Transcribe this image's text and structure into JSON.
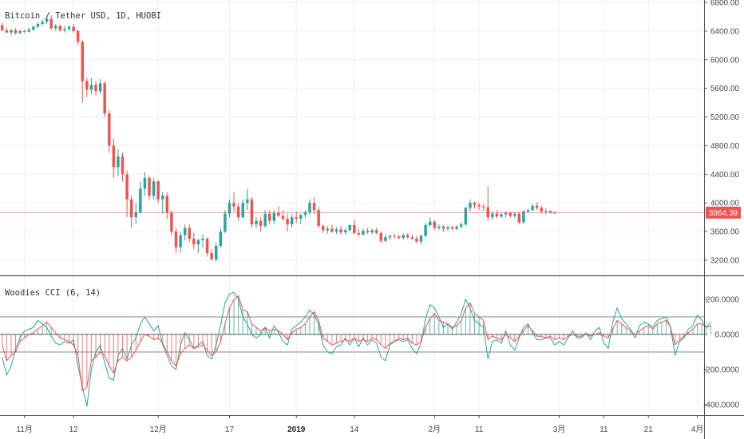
{
  "chart_data": [
    {
      "type": "candlestick",
      "title": "Bitcoin / Tether USD, 1D, HUOBI",
      "last_price": 3864.39,
      "ylim": [
        3000,
        6900
      ],
      "y_ticks": [
        "3200.00",
        "3600.00",
        "4000.00",
        "4400.00",
        "4800.00",
        "5200.00",
        "5600.00",
        "6000.00",
        "6400.00",
        "6800.00"
      ],
      "grid": true,
      "colors": {
        "up": "#26a69a",
        "down": "#ef5350",
        "last_price_line": "#ef5350"
      },
      "ohlc": [
        [
          6480,
          6520,
          6400,
          6410
        ],
        [
          6410,
          6450,
          6370,
          6380
        ],
        [
          6380,
          6430,
          6340,
          6410
        ],
        [
          6410,
          6440,
          6350,
          6370
        ],
        [
          6370,
          6420,
          6360,
          6400
        ],
        [
          6400,
          6420,
          6370,
          6390
        ],
        [
          6390,
          6450,
          6380,
          6420
        ],
        [
          6420,
          6480,
          6400,
          6460
        ],
        [
          6460,
          6520,
          6440,
          6500
        ],
        [
          6500,
          6560,
          6470,
          6530
        ],
        [
          6530,
          6600,
          6500,
          6570
        ],
        [
          6570,
          6620,
          6420,
          6440
        ],
        [
          6440,
          6500,
          6400,
          6470
        ],
        [
          6470,
          6490,
          6390,
          6410
        ],
        [
          6410,
          6470,
          6380,
          6430
        ],
        [
          6430,
          6480,
          6400,
          6460
        ],
        [
          6460,
          6500,
          6380,
          6400
        ],
        [
          6400,
          6420,
          6200,
          6250
        ],
        [
          6250,
          6270,
          5400,
          5700
        ],
        [
          5700,
          5750,
          5480,
          5580
        ],
        [
          5580,
          5740,
          5520,
          5650
        ],
        [
          5650,
          5700,
          5500,
          5560
        ],
        [
          5560,
          5730,
          5520,
          5670
        ],
        [
          5670,
          5700,
          5200,
          5250
        ],
        [
          5250,
          5300,
          4700,
          4800
        ],
        [
          4800,
          4900,
          4350,
          4500
        ],
        [
          4500,
          4750,
          4380,
          4650
        ],
        [
          4650,
          4700,
          4300,
          4400
        ],
        [
          4400,
          4450,
          3800,
          4050
        ],
        [
          4050,
          4100,
          3650,
          3800
        ],
        [
          3800,
          4000,
          3700,
          3870
        ],
        [
          3870,
          4300,
          3850,
          4200
        ],
        [
          4200,
          4430,
          4100,
          4350
        ],
        [
          4350,
          4380,
          4050,
          4100
        ],
        [
          4100,
          4350,
          4050,
          4300
        ],
        [
          4300,
          4320,
          4000,
          4050
        ],
        [
          4050,
          4150,
          3850,
          4100
        ],
        [
          4100,
          4150,
          3780,
          3860
        ],
        [
          3860,
          3900,
          3550,
          3600
        ],
        [
          3600,
          3650,
          3300,
          3380
        ],
        [
          3380,
          3600,
          3300,
          3550
        ],
        [
          3550,
          3700,
          3480,
          3650
        ],
        [
          3650,
          3700,
          3450,
          3500
        ],
        [
          3500,
          3580,
          3350,
          3420
        ],
        [
          3420,
          3500,
          3300,
          3480
        ],
        [
          3480,
          3560,
          3380,
          3500
        ],
        [
          3500,
          3520,
          3250,
          3300
        ],
        [
          3300,
          3350,
          3200,
          3210
        ],
        [
          3210,
          3450,
          3180,
          3400
        ],
        [
          3400,
          3650,
          3380,
          3600
        ],
        [
          3600,
          3900,
          3580,
          3850
        ],
        [
          3850,
          4050,
          3800,
          4000
        ],
        [
          4000,
          4150,
          3880,
          3950
        ],
        [
          3950,
          4000,
          3750,
          3800
        ],
        [
          3800,
          4050,
          3780,
          4000
        ],
        [
          4000,
          4200,
          3900,
          4050
        ],
        [
          4050,
          4080,
          3650,
          3700
        ],
        [
          3700,
          3800,
          3650,
          3750
        ],
        [
          3750,
          3800,
          3600,
          3680
        ],
        [
          3680,
          3900,
          3650,
          3850
        ],
        [
          3850,
          3900,
          3700,
          3750
        ],
        [
          3750,
          3900,
          3700,
          3860
        ],
        [
          3860,
          3950,
          3800,
          3820
        ],
        [
          3820,
          3900,
          3750,
          3780
        ],
        [
          3780,
          3850,
          3600,
          3700
        ],
        [
          3700,
          3850,
          3650,
          3800
        ],
        [
          3800,
          3880,
          3720,
          3780
        ],
        [
          3780,
          3850,
          3700,
          3830
        ],
        [
          3830,
          3900,
          3790,
          3870
        ],
        [
          3870,
          4050,
          3830,
          4000
        ],
        [
          4000,
          4080,
          3850,
          3900
        ],
        [
          3900,
          3950,
          3650,
          3680
        ],
        [
          3680,
          3700,
          3580,
          3620
        ],
        [
          3620,
          3680,
          3570,
          3640
        ],
        [
          3640,
          3700,
          3580,
          3600
        ],
        [
          3600,
          3660,
          3570,
          3630
        ],
        [
          3630,
          3680,
          3550,
          3590
        ],
        [
          3590,
          3650,
          3560,
          3620
        ],
        [
          3620,
          3700,
          3600,
          3690
        ],
        [
          3690,
          3760,
          3560,
          3580
        ],
        [
          3580,
          3640,
          3530,
          3560
        ],
        [
          3560,
          3640,
          3540,
          3610
        ],
        [
          3610,
          3650,
          3570,
          3590
        ],
        [
          3590,
          3640,
          3560,
          3620
        ],
        [
          3620,
          3650,
          3560,
          3580
        ],
        [
          3580,
          3600,
          3440,
          3470
        ],
        [
          3470,
          3560,
          3450,
          3520
        ],
        [
          3520,
          3560,
          3480,
          3540
        ],
        [
          3540,
          3570,
          3500,
          3530
        ],
        [
          3530,
          3560,
          3490,
          3510
        ],
        [
          3510,
          3570,
          3490,
          3550
        ],
        [
          3550,
          3580,
          3500,
          3520
        ],
        [
          3520,
          3560,
          3480,
          3500
        ],
        [
          3500,
          3540,
          3440,
          3460
        ],
        [
          3460,
          3560,
          3420,
          3540
        ],
        [
          3540,
          3720,
          3520,
          3690
        ],
        [
          3690,
          3800,
          3670,
          3740
        ],
        [
          3740,
          3760,
          3620,
          3650
        ],
        [
          3650,
          3700,
          3620,
          3670
        ],
        [
          3670,
          3690,
          3600,
          3640
        ],
        [
          3640,
          3680,
          3610,
          3660
        ],
        [
          3660,
          3680,
          3620,
          3640
        ],
        [
          3640,
          3690,
          3620,
          3670
        ],
        [
          3670,
          3730,
          3640,
          3700
        ],
        [
          3700,
          3950,
          3680,
          3930
        ],
        [
          3930,
          4050,
          3880,
          4000
        ],
        [
          4000,
          4020,
          3920,
          3970
        ],
        [
          3970,
          4000,
          3900,
          3950
        ],
        [
          3950,
          3980,
          3890,
          3940
        ],
        [
          3940,
          4230,
          3750,
          3800
        ],
        [
          3800,
          3880,
          3760,
          3850
        ],
        [
          3850,
          3900,
          3780,
          3810
        ],
        [
          3810,
          3860,
          3790,
          3840
        ],
        [
          3840,
          3890,
          3800,
          3860
        ],
        [
          3860,
          3880,
          3790,
          3820
        ],
        [
          3820,
          3870,
          3790,
          3850
        ],
        [
          3850,
          3870,
          3700,
          3730
        ],
        [
          3730,
          3900,
          3710,
          3880
        ],
        [
          3880,
          3920,
          3850,
          3900
        ],
        [
          3900,
          3990,
          3880,
          3960
        ],
        [
          3960,
          4010,
          3900,
          3930
        ],
        [
          3930,
          3960,
          3850,
          3880
        ],
        [
          3880,
          3920,
          3840,
          3890
        ],
        [
          3890,
          3900,
          3850,
          3870
        ],
        [
          3870,
          3880,
          3840,
          3864
        ]
      ],
      "x_ticks": [
        {
          "index": 5,
          "label": "11月",
          "bold": false
        },
        {
          "index": 16,
          "label": "12",
          "bold": false
        },
        {
          "index": 35,
          "label": "12月",
          "bold": false
        },
        {
          "index": 51,
          "label": "17",
          "bold": false
        },
        {
          "index": 66,
          "label": "2019",
          "bold": true
        },
        {
          "index": 79,
          "label": "14",
          "bold": false
        },
        {
          "index": 97,
          "label": "2月",
          "bold": false
        },
        {
          "index": 107,
          "label": "11",
          "bold": false
        },
        {
          "index": 125,
          "label": "3月",
          "bold": false
        },
        {
          "index": 135,
          "label": "11",
          "bold": false
        },
        {
          "index": 145,
          "label": "21",
          "bold": false
        },
        {
          "index": 156,
          "label": "4月",
          "bold": false
        }
      ],
      "x_slots": 158
    },
    {
      "type": "line",
      "title": "Woodies CCI (6, 14)",
      "ylim": [
        -440,
        300
      ],
      "y_ticks": [
        "200.0000",
        "0.0000",
        "-200.0000",
        "-400.0000"
      ],
      "reference_lines": [
        100,
        0,
        -100
      ],
      "series": [
        {
          "color": "#ef5350",
          "role": "cci-14"
        },
        {
          "color": "#26a69a",
          "role": "turbo-cci-6"
        }
      ],
      "cci14": [
        -60,
        -150,
        -120,
        -100,
        -40,
        -20,
        0,
        10,
        30,
        50,
        70,
        40,
        10,
        -20,
        -30,
        -40,
        -60,
        -120,
        -320,
        -300,
        -150,
        -130,
        -100,
        -120,
        -180,
        -220,
        -150,
        -130,
        -150,
        -130,
        -90,
        -40,
        0,
        -10,
        -30,
        -20,
        -50,
        -100,
        -150,
        -180,
        -110,
        -80,
        -60,
        -80,
        -70,
        -60,
        -90,
        -120,
        -100,
        -40,
        60,
        150,
        200,
        220,
        140,
        130,
        60,
        40,
        20,
        40,
        20,
        30,
        20,
        0,
        -30,
        10,
        30,
        40,
        60,
        100,
        130,
        80,
        -20,
        -40,
        -60,
        -50,
        -40,
        -30,
        -40,
        -20,
        -40,
        -30,
        -40,
        -20,
        -30,
        -60,
        -80,
        -50,
        -40,
        -20,
        -30,
        -20,
        -50,
        -60,
        -40,
        40,
        90,
        120,
        80,
        70,
        60,
        40,
        50,
        80,
        150,
        180,
        120,
        100,
        80,
        -30,
        -10,
        -20,
        -30,
        0,
        -20,
        -40,
        -10,
        20,
        50,
        20,
        -10,
        -10,
        -20,
        -10,
        -30,
        -20,
        -30,
        -10,
        0,
        -10,
        -10,
        0,
        -10,
        0,
        10,
        -10,
        -20,
        30,
        80,
        60,
        40,
        20,
        0,
        20,
        40,
        50,
        30,
        60,
        70,
        80,
        40,
        -60,
        -30,
        -10,
        10,
        30,
        60,
        60,
        40,
        50
      ],
      "cci6": [
        -130,
        -230,
        -180,
        -80,
        -20,
        20,
        30,
        40,
        80,
        60,
        40,
        -10,
        -50,
        -60,
        -40,
        -50,
        -30,
        -180,
        -300,
        -410,
        -200,
        -100,
        -60,
        -160,
        -250,
        -260,
        -120,
        -80,
        -140,
        -60,
        -20,
        60,
        100,
        60,
        20,
        50,
        -60,
        -120,
        -180,
        -200,
        -60,
        10,
        -30,
        -80,
        -60,
        -40,
        -120,
        -140,
        -60,
        50,
        180,
        230,
        240,
        200,
        100,
        60,
        0,
        -20,
        0,
        40,
        -20,
        50,
        10,
        -40,
        -60,
        30,
        50,
        70,
        100,
        140,
        110,
        60,
        -60,
        -100,
        -110,
        -70,
        -60,
        -20,
        -60,
        -20,
        -70,
        -20,
        -60,
        -30,
        -50,
        -130,
        -150,
        -60,
        -40,
        -30,
        -40,
        -30,
        -80,
        -110,
        -50,
        90,
        170,
        150,
        100,
        40,
        60,
        30,
        70,
        120,
        200,
        150,
        80,
        60,
        40,
        -140,
        -40,
        -30,
        -50,
        20,
        -60,
        -90,
        -20,
        40,
        60,
        10,
        -30,
        -30,
        -20,
        -20,
        -60,
        -40,
        -60,
        -20,
        20,
        -20,
        -20,
        10,
        -30,
        20,
        40,
        -50,
        -80,
        70,
        150,
        90,
        60,
        30,
        -20,
        50,
        70,
        60,
        40,
        80,
        90,
        100,
        40,
        -120,
        -40,
        -20,
        30,
        50,
        110,
        80,
        40,
        70
      ]
    }
  ]
}
